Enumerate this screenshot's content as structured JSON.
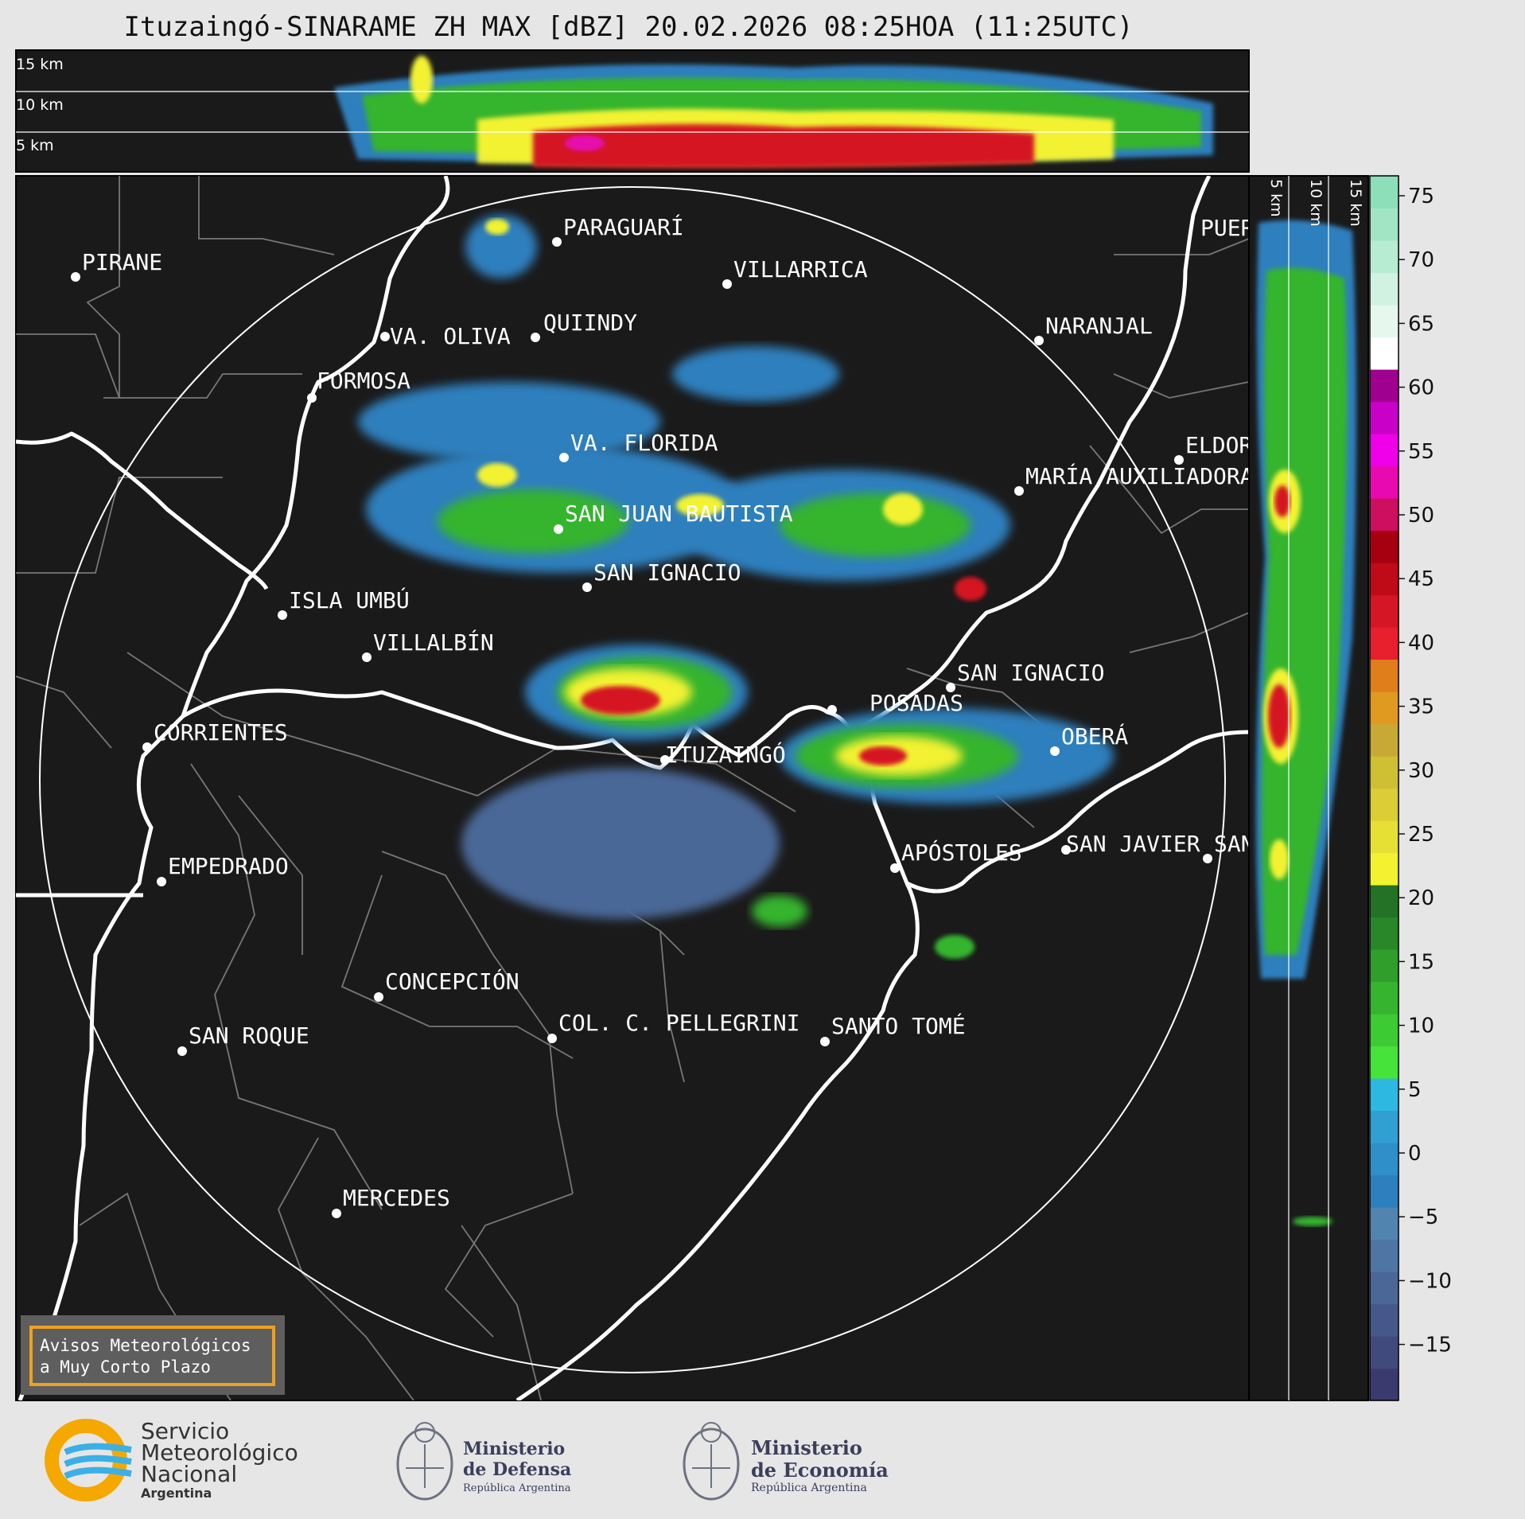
{
  "title": "Ituzaingó-SINARAME ZH MAX [dBZ] 20.02.2026 08:25HOA (11:25UTC)",
  "top_profile": {
    "height_labels": [
      "15 km",
      "10 km",
      "5 km"
    ]
  },
  "side_profile": {
    "height_labels": [
      "5 km",
      "10 km",
      "15 km"
    ]
  },
  "colorbar": {
    "ticks": [
      "75",
      "70",
      "65",
      "60",
      "55",
      "50",
      "45",
      "40",
      "35",
      "30",
      "25",
      "20",
      "15",
      "10",
      "5",
      "0",
      "−5",
      "−10",
      "−15"
    ],
    "colors": [
      "#3b3a6e",
      "#414a7c",
      "#46588a",
      "#4a6797",
      "#4e75a4",
      "#5284b0",
      "#2d7fbd",
      "#2f8fc8",
      "#30a0d3",
      "#2cb8e0",
      "#46e33a",
      "#3ccb32",
      "#36b42f",
      "#2f9e2b",
      "#29872a",
      "#237225",
      "#f2f230",
      "#e6e035",
      "#dccc35",
      "#cfbf33",
      "#c8a936",
      "#e09a20",
      "#e07e1c",
      "#e8202e",
      "#d51624",
      "#bf0a18",
      "#a60010",
      "#cc0f5f",
      "#e80ab0",
      "#f000e8",
      "#c800c8",
      "#a0008f",
      "#ffffff",
      "#e6f8ee",
      "#d1f2e0",
      "#b8ecd2",
      "#a2e5c5",
      "#8ddfba"
    ]
  },
  "cities": [
    {
      "name": "PARAGUARÍ"
    },
    {
      "name": "VILLARRICA"
    },
    {
      "name": "PIRANE"
    },
    {
      "name": "QUIINDY"
    },
    {
      "name": "VA. OLIVA"
    },
    {
      "name": "NARANJAL"
    },
    {
      "name": "FORMOSA"
    },
    {
      "name": "VA. FLORIDA"
    },
    {
      "name": "ELDORADO"
    },
    {
      "name": "MARÍA AUXILIADORA"
    },
    {
      "name": "SAN JUAN BAUTISTA"
    },
    {
      "name": "SAN IGNACIO"
    },
    {
      "name": "ISLA UMBÚ"
    },
    {
      "name": "VILLALBÍN"
    },
    {
      "name": "SAN IGNACIO"
    },
    {
      "name": "POSADAS"
    },
    {
      "name": "CORRIENTES"
    },
    {
      "name": "OBERÁ"
    },
    {
      "name": "ITUZAINGÓ"
    },
    {
      "name": "EMPEDRADO"
    },
    {
      "name": "APÓSTOLES"
    },
    {
      "name": "SAN JAVIER"
    },
    {
      "name": "SAN"
    },
    {
      "name": "CONCEPCIÓN"
    },
    {
      "name": "COL. C. PELLEGRINI"
    },
    {
      "name": "SANTO TOMÉ"
    },
    {
      "name": "SAN ROQUE"
    },
    {
      "name": "MERCEDES"
    },
    {
      "name": "PUERTO"
    }
  ],
  "warning_box": {
    "line1": "Avisos Meteorológicos",
    "line2": "a Muy Corto Plazo"
  },
  "footer": {
    "smn": {
      "line1": "Servicio",
      "line2": "Meteorológico",
      "line3": "Nacional",
      "line4": "Argentina"
    },
    "defensa": {
      "line1": "Ministerio",
      "line2": "de Defensa",
      "line3": "República Argentina"
    },
    "economia": {
      "line1": "Ministerio",
      "line2": "de Economía",
      "line3": "República Argentina"
    }
  }
}
